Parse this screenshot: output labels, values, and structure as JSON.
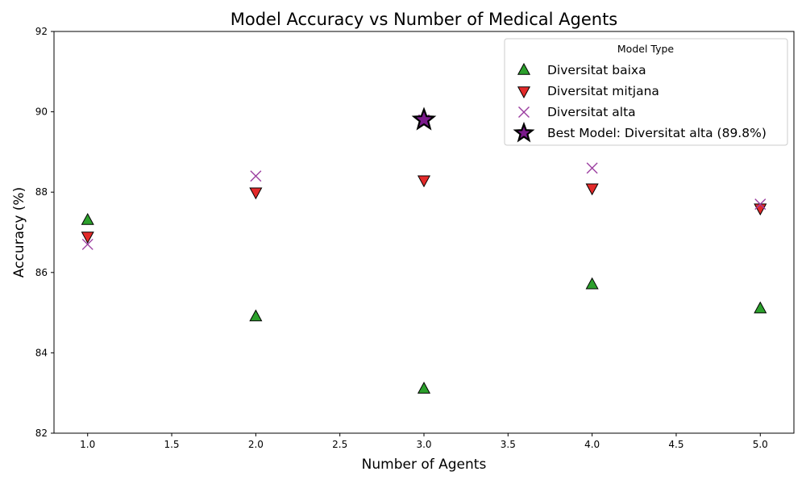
{
  "chart_data": {
    "type": "scatter",
    "title": "Model Accuracy vs Number of Medical Agents",
    "xlabel": "Number of Agents",
    "ylabel": "Accuracy (%)",
    "xlim": [
      0.8,
      5.2
    ],
    "ylim": [
      82,
      92
    ],
    "xticks": [
      "1.0",
      "1.5",
      "2.0",
      "2.5",
      "3.0",
      "3.5",
      "4.0",
      "4.5",
      "5.0"
    ],
    "yticks": [
      "82",
      "84",
      "86",
      "88",
      "90",
      "92"
    ],
    "grid": false,
    "legend": {
      "title": "Model Type",
      "placement": "top-right"
    },
    "series": [
      {
        "name": "Diversitat baixa",
        "marker": "triangle-up",
        "color": "#2ca02c",
        "x": [
          1,
          2,
          3,
          4,
          5
        ],
        "y": [
          87.3,
          84.9,
          83.1,
          85.7,
          85.1
        ]
      },
      {
        "name": "Diversitat mitjana",
        "marker": "triangle-down",
        "color": "#e32a2a",
        "x": [
          1,
          2,
          3,
          4,
          5
        ],
        "y": [
          86.9,
          88.0,
          88.3,
          88.1,
          87.6
        ]
      },
      {
        "name": "Diversitat alta",
        "marker": "x",
        "color": "#9b3ea0",
        "x": [
          1,
          2,
          3,
          4,
          5
        ],
        "y": [
          86.7,
          88.4,
          89.8,
          88.6,
          87.7
        ]
      }
    ],
    "highlight": {
      "name": "Best Model: Diversitat alta (89.8%)",
      "marker": "star",
      "color": "#7b1a8c",
      "x": 3,
      "y": 89.8
    }
  }
}
